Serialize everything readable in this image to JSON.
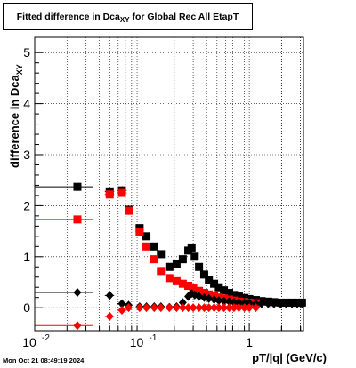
{
  "title": {
    "main": "Fitted difference in Dca",
    "sub": "XY",
    "rest": " for Global Rec All EtapT"
  },
  "footer": "Mon Oct 21 08:49:19 2024",
  "chart_data": {
    "type": "scatter",
    "title": "Fitted difference in DcaXY for Global Rec All EtapT",
    "xlabel": "pT/|q| (GeV/c)",
    "ylabel": "difference in DcaXY",
    "xscale": "log",
    "xlim": [
      0.01,
      3.2
    ],
    "ylim": [
      -0.45,
      5.3
    ],
    "grid": true,
    "x_ticks": [
      {
        "v": 0.01,
        "label": "10",
        "exp": "-2"
      },
      {
        "v": 0.1,
        "label": "10",
        "exp": "-1"
      },
      {
        "v": 1,
        "label": "1",
        "exp": ""
      }
    ],
    "y_ticks": [
      0,
      1,
      2,
      3,
      4,
      5
    ],
    "series": [
      {
        "color": "#000000",
        "marker": "square",
        "points": [
          [
            0.025,
            2.37,
            0.01,
            0.04
          ],
          [
            0.05,
            2.28,
            0.005,
            0.06
          ],
          [
            0.065,
            2.3,
            0.007,
            0.08
          ],
          [
            0.075,
            1.92,
            0.005,
            0.04
          ],
          [
            0.095,
            1.56,
            0.005,
            0.05
          ],
          [
            0.11,
            1.4,
            0.005,
            0.04
          ],
          [
            0.13,
            1.2,
            0.005,
            0.04
          ],
          [
            0.15,
            1.05,
            0.005,
            0.04
          ],
          [
            0.18,
            0.8,
            0.01,
            0.03
          ],
          [
            0.21,
            0.85,
            0.01,
            0.03
          ],
          [
            0.24,
            0.95,
            0.01,
            0.04
          ],
          [
            0.27,
            1.12,
            0.01,
            0.04
          ],
          [
            0.29,
            1.18,
            0.01,
            0.04
          ],
          [
            0.31,
            1.0,
            0.01,
            0.04
          ],
          [
            0.34,
            0.8,
            0.01,
            0.03
          ],
          [
            0.38,
            0.65,
            0.02,
            0.03
          ],
          [
            0.42,
            0.55,
            0.02,
            0.03
          ],
          [
            0.47,
            0.47,
            0.02,
            0.03
          ],
          [
            0.52,
            0.4,
            0.02,
            0.02
          ],
          [
            0.58,
            0.34,
            0.02,
            0.02
          ],
          [
            0.65,
            0.29,
            0.03,
            0.02
          ],
          [
            0.72,
            0.25,
            0.03,
            0.02
          ],
          [
            0.8,
            0.22,
            0.03,
            0.02
          ],
          [
            0.9,
            0.19,
            0.04,
            0.02
          ],
          [
            1.0,
            0.17,
            0.04,
            0.02
          ],
          [
            1.15,
            0.15,
            0.05,
            0.02
          ],
          [
            1.3,
            0.13,
            0.06,
            0.02
          ],
          [
            1.5,
            0.12,
            0.07,
            0.02
          ],
          [
            1.7,
            0.11,
            0.08,
            0.02
          ],
          [
            1.95,
            0.1,
            0.1,
            0.02
          ],
          [
            2.2,
            0.1,
            0.1,
            0.02
          ],
          [
            2.5,
            0.1,
            0.12,
            0.02
          ],
          [
            2.8,
            0.1,
            0.14,
            0.02
          ],
          [
            3.1,
            0.1,
            0.1,
            0.02
          ]
        ]
      },
      {
        "color": "#ff0000",
        "marker": "square",
        "points": [
          [
            0.025,
            1.73,
            0.01,
            0.04
          ],
          [
            0.05,
            2.22,
            0.005,
            0.05
          ],
          [
            0.065,
            2.25,
            0.007,
            0.06
          ],
          [
            0.075,
            1.9,
            0.005,
            0.04
          ],
          [
            0.095,
            1.49,
            0.005,
            0.04
          ],
          [
            0.11,
            1.2,
            0.005,
            0.04
          ],
          [
            0.13,
            0.95,
            0.005,
            0.03
          ],
          [
            0.15,
            0.72,
            0.005,
            0.03
          ],
          [
            0.18,
            0.58,
            0.01,
            0.03
          ],
          [
            0.21,
            0.52,
            0.01,
            0.03
          ],
          [
            0.24,
            0.47,
            0.01,
            0.03
          ],
          [
            0.27,
            0.43,
            0.01,
            0.03
          ],
          [
            0.3,
            0.38,
            0.01,
            0.03
          ],
          [
            0.34,
            0.33,
            0.01,
            0.03
          ],
          [
            0.38,
            0.29,
            0.02,
            0.02
          ],
          [
            0.42,
            0.26,
            0.02,
            0.02
          ],
          [
            0.47,
            0.23,
            0.02,
            0.02
          ],
          [
            0.52,
            0.2,
            0.02,
            0.02
          ],
          [
            0.58,
            0.18,
            0.02,
            0.02
          ],
          [
            0.65,
            0.16,
            0.03,
            0.02
          ],
          [
            0.72,
            0.14,
            0.03,
            0.02
          ],
          [
            0.8,
            0.12,
            0.03,
            0.02
          ],
          [
            0.9,
            0.11,
            0.04,
            0.02
          ],
          [
            1.0,
            0.1,
            0.04,
            0.02
          ],
          [
            1.15,
            0.09,
            0.05,
            0.02
          ]
        ]
      },
      {
        "color": "#000000",
        "marker": "diamond",
        "points": [
          [
            0.025,
            0.3,
            0.01,
            0.03
          ],
          [
            0.05,
            0.24,
            0.005,
            0.03
          ],
          [
            0.065,
            0.08,
            0.007,
            0.03
          ],
          [
            0.075,
            0.05,
            0.005,
            0.02
          ],
          [
            0.095,
            0.02,
            0.005,
            0.02
          ],
          [
            0.11,
            0.02,
            0.005,
            0.02
          ],
          [
            0.13,
            0.02,
            0.005,
            0.02
          ],
          [
            0.15,
            0.02,
            0.005,
            0.02
          ],
          [
            0.18,
            0.01,
            0.01,
            0.02
          ],
          [
            0.21,
            0.02,
            0.01,
            0.02
          ],
          [
            0.24,
            0.1,
            0.01,
            0.03
          ],
          [
            0.27,
            0.22,
            0.01,
            0.03
          ],
          [
            0.29,
            0.28,
            0.01,
            0.03
          ],
          [
            0.31,
            0.25,
            0.01,
            0.03
          ],
          [
            0.34,
            0.22,
            0.01,
            0.03
          ],
          [
            0.38,
            0.2,
            0.02,
            0.03
          ],
          [
            0.42,
            0.18,
            0.02,
            0.03
          ],
          [
            0.47,
            0.16,
            0.02,
            0.02
          ],
          [
            0.52,
            0.14,
            0.02,
            0.02
          ],
          [
            0.58,
            0.13,
            0.02,
            0.02
          ],
          [
            0.65,
            0.12,
            0.03,
            0.02
          ],
          [
            0.72,
            0.11,
            0.03,
            0.02
          ],
          [
            0.8,
            0.1,
            0.03,
            0.02
          ],
          [
            0.9,
            0.09,
            0.04,
            0.02
          ],
          [
            1.0,
            0.09,
            0.04,
            0.02
          ],
          [
            1.15,
            0.08,
            0.05,
            0.02
          ],
          [
            1.3,
            0.08,
            0.06,
            0.02
          ],
          [
            1.5,
            0.08,
            0.07,
            0.02
          ],
          [
            1.7,
            0.08,
            0.08,
            0.02
          ],
          [
            1.95,
            0.08,
            0.1,
            0.02
          ],
          [
            2.2,
            0.08,
            0.1,
            0.02
          ],
          [
            2.5,
            0.08,
            0.12,
            0.02
          ],
          [
            2.8,
            0.08,
            0.14,
            0.02
          ],
          [
            3.1,
            0.08,
            0.1,
            0.02
          ]
        ]
      },
      {
        "color": "#ff0000",
        "marker": "diamond",
        "points": [
          [
            0.025,
            -0.35,
            0.01,
            0.03
          ],
          [
            0.05,
            -0.17,
            0.005,
            0.03
          ],
          [
            0.065,
            -0.05,
            0.007,
            0.03
          ],
          [
            0.075,
            0.0,
            0.005,
            0.02
          ],
          [
            0.095,
            0.0,
            0.005,
            0.02
          ],
          [
            0.11,
            0.0,
            0.005,
            0.02
          ],
          [
            0.13,
            0.0,
            0.005,
            0.02
          ],
          [
            0.15,
            0.0,
            0.005,
            0.02
          ],
          [
            0.18,
            0.0,
            0.01,
            0.02
          ],
          [
            0.21,
            0.0,
            0.01,
            0.02
          ],
          [
            0.24,
            0.0,
            0.01,
            0.02
          ],
          [
            0.27,
            0.0,
            0.01,
            0.02
          ],
          [
            0.3,
            0.0,
            0.01,
            0.02
          ],
          [
            0.34,
            0.0,
            0.01,
            0.02
          ],
          [
            0.38,
            0.0,
            0.02,
            0.02
          ],
          [
            0.42,
            0.0,
            0.02,
            0.02
          ],
          [
            0.47,
            0.0,
            0.02,
            0.02
          ],
          [
            0.52,
            0.0,
            0.02,
            0.02
          ],
          [
            0.58,
            0.0,
            0.02,
            0.02
          ],
          [
            0.65,
            0.0,
            0.03,
            0.02
          ],
          [
            0.72,
            0.0,
            0.03,
            0.02
          ],
          [
            0.8,
            0.0,
            0.03,
            0.02
          ],
          [
            0.9,
            0.0,
            0.04,
            0.02
          ],
          [
            1.0,
            0.0,
            0.04,
            0.02
          ],
          [
            1.15,
            0.0,
            0.05,
            0.02
          ]
        ]
      }
    ]
  }
}
